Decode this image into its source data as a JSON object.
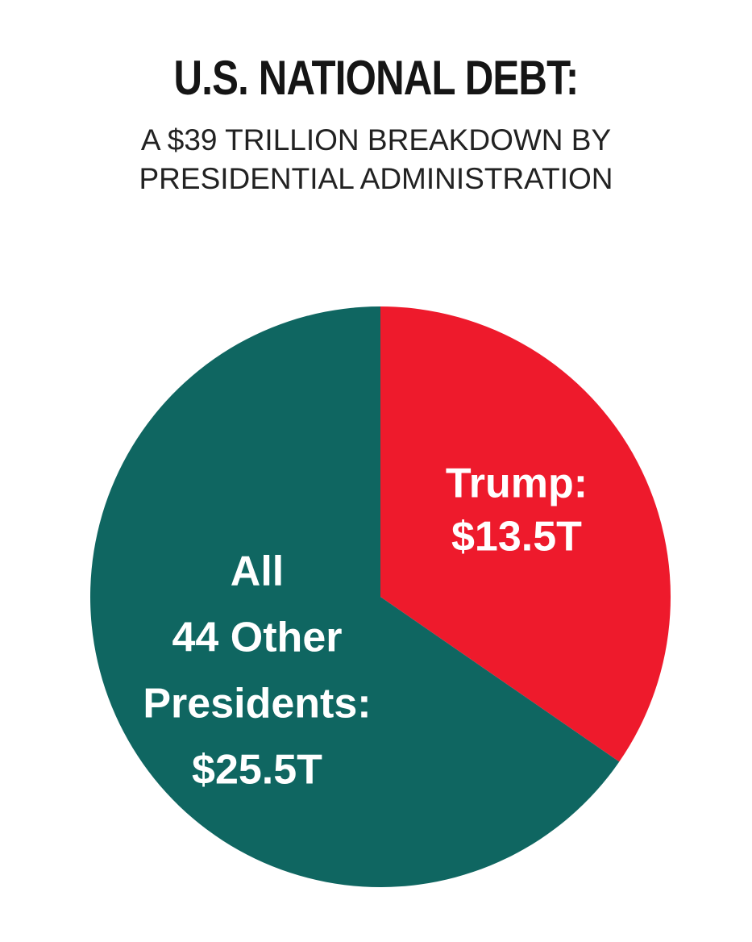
{
  "title": "U.S. NATIONAL DEBT:",
  "subtitle": [
    "A $39 TRILLION BREAKDOWN BY",
    "PRESIDENTIAL ADMINISTRATION"
  ],
  "chart_data": {
    "type": "pie",
    "unit": "trillion USD",
    "slices": [
      {
        "label_lines": [
          "Trump:",
          "$13.5T"
        ],
        "value": 13.5,
        "color": "#ee1a2c"
      },
      {
        "label_lines": [
          "All",
          "44 Other",
          "Presidents:",
          "$25.5T"
        ],
        "value": 25.5,
        "color": "#0f6661"
      }
    ]
  }
}
